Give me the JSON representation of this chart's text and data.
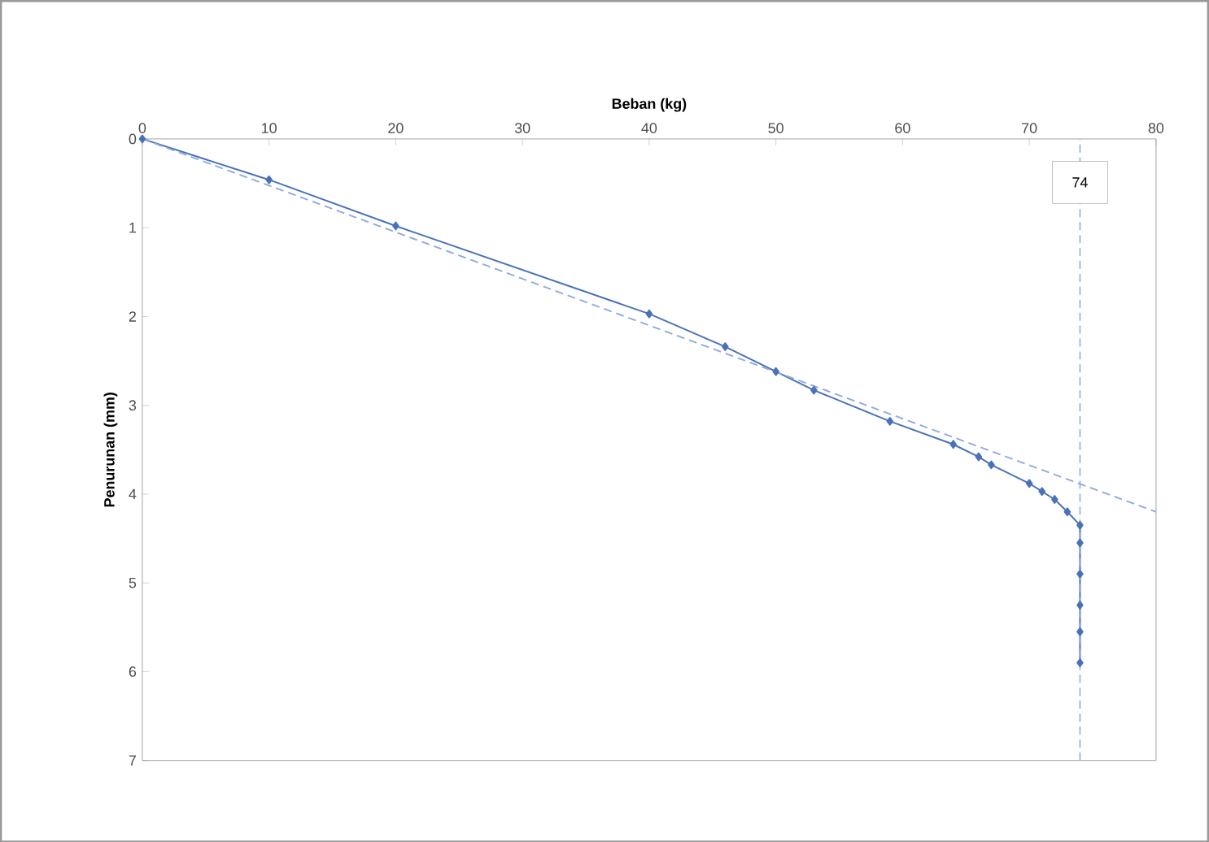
{
  "chart_data": {
    "type": "line",
    "xlabel": "Beban (kg)",
    "ylabel": "Penurunan (mm)",
    "xlim": [
      0,
      80
    ],
    "xticks": [
      0,
      10,
      20,
      30,
      40,
      50,
      60,
      70,
      80
    ],
    "ylim": [
      7,
      0
    ],
    "yticks": [
      0,
      1,
      2,
      3,
      4,
      5,
      6,
      7
    ],
    "series": [
      {
        "color": "#4a72b8",
        "marker": "diamond",
        "line_style": "solid",
        "x": [
          0,
          10,
          20,
          40,
          46,
          50,
          53,
          59,
          64,
          66,
          67,
          70,
          71,
          72,
          73,
          74,
          74,
          74,
          74,
          74,
          74
        ],
        "values": [
          0,
          0.46,
          0.98,
          1.97,
          2.34,
          2.62,
          2.83,
          3.18,
          3.44,
          3.58,
          3.67,
          3.88,
          3.97,
          4.06,
          4.2,
          4.35,
          4.55,
          4.9,
          5.25,
          5.55,
          5.9
        ]
      },
      {
        "color": "#8faadc",
        "marker": "none",
        "line_style": "dashed",
        "x": [
          0,
          80
        ],
        "values": [
          0,
          4.2
        ]
      }
    ],
    "ref_lines": [
      {
        "axis": "x",
        "value": 74,
        "label": "74",
        "color": "#8faadc",
        "line_style": "dashed"
      }
    ]
  }
}
